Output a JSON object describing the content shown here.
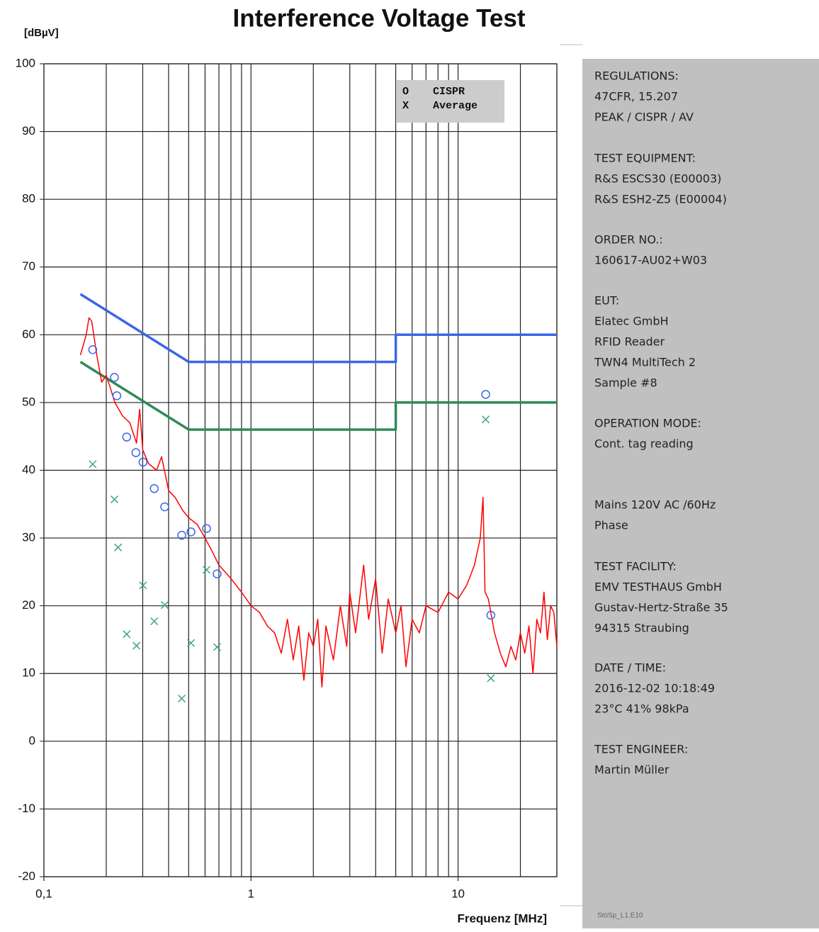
{
  "chart_data": {
    "type": "line",
    "title": "Interference Voltage Test",
    "y_label": "[dBµV]",
    "x_label": "Frequenz [MHz]",
    "log_x": true,
    "grid": true,
    "xlim": [
      0.1,
      30
    ],
    "ylim": [
      -20,
      100
    ],
    "xticks": [
      {
        "value": 0.1,
        "label": "0,1"
      },
      1,
      10
    ],
    "xminor": [
      0.2,
      0.3,
      0.4,
      0.5,
      0.6,
      0.7,
      0.8,
      0.9,
      2,
      3,
      4,
      5,
      6,
      7,
      8,
      9,
      20,
      30
    ],
    "yticks": [
      -20,
      -10,
      0,
      10,
      20,
      30,
      40,
      50,
      60,
      70,
      80,
      90,
      100
    ],
    "series": [
      {
        "type": "line",
        "color": "#3a66e8",
        "width": 3.5,
        "x": [
          0.15,
          0.5,
          5,
          5,
          30
        ],
        "values": [
          66,
          56,
          56,
          60,
          60
        ]
      },
      {
        "type": "line",
        "color": "#2e8b57",
        "width": 3.5,
        "x": [
          0.15,
          0.5,
          5,
          5,
          30
        ],
        "values": [
          56,
          46,
          46,
          50,
          50
        ]
      },
      {
        "type": "line",
        "color": "#ff0000",
        "width": 1.5,
        "x": [
          0.15,
          0.16,
          0.165,
          0.17,
          0.18,
          0.19,
          0.2,
          0.21,
          0.22,
          0.24,
          0.26,
          0.28,
          0.29,
          0.3,
          0.32,
          0.35,
          0.37,
          0.4,
          0.43,
          0.47,
          0.5,
          0.55,
          0.6,
          0.65,
          0.7,
          0.8,
          0.9,
          1.0,
          1.1,
          1.2,
          1.3,
          1.4,
          1.5,
          1.6,
          1.7,
          1.8,
          1.9,
          2.0,
          2.1,
          2.2,
          2.3,
          2.5,
          2.7,
          2.9,
          3.0,
          3.2,
          3.5,
          3.7,
          4.0,
          4.3,
          4.6,
          5.0,
          5.3,
          5.6,
          6.0,
          6.5,
          7,
          8,
          9,
          10,
          11,
          12,
          12.8,
          13.2,
          13.5,
          14,
          15,
          16,
          17,
          18,
          19,
          20,
          21,
          22,
          23,
          24,
          25,
          26,
          27,
          28,
          29,
          30
        ],
        "values": [
          57,
          60,
          62.5,
          62,
          57,
          53,
          54,
          52,
          50,
          48,
          47,
          44,
          49,
          43,
          41,
          40,
          42,
          37,
          36,
          34,
          33,
          32,
          30,
          28,
          26,
          24,
          22,
          20,
          19,
          17,
          16,
          13,
          18,
          12,
          17,
          9,
          16,
          14,
          18,
          8,
          17,
          12,
          20,
          14,
          22,
          16,
          26,
          18,
          24,
          13,
          21,
          16,
          20,
          11,
          18,
          16,
          20,
          19,
          22,
          21,
          23,
          26,
          30,
          36,
          22,
          21,
          16,
          13,
          11,
          14,
          12,
          16,
          13,
          17,
          10,
          18,
          16,
          22,
          15,
          20,
          19,
          14
        ]
      },
      {
        "type": "scatter",
        "name": "CISPR",
        "marker_label": "O",
        "marker": "circle",
        "color": "#3a66e8",
        "x": [
          0.172,
          0.219,
          0.225,
          0.251,
          0.278,
          0.301,
          0.341,
          0.383,
          0.463,
          0.513,
          0.61,
          0.686,
          13.6,
          14.4
        ],
        "values": [
          57.8,
          53.7,
          51.0,
          44.9,
          42.6,
          41.2,
          37.3,
          34.6,
          30.4,
          30.9,
          31.4,
          24.7,
          51.2,
          18.6
        ]
      },
      {
        "type": "scatter",
        "name": "Average",
        "marker_label": "X",
        "marker": "cross",
        "color": "#3aa876",
        "x": [
          0.172,
          0.219,
          0.228,
          0.251,
          0.28,
          0.301,
          0.341,
          0.383,
          0.463,
          0.513,
          0.61,
          0.686,
          13.6,
          14.4
        ],
        "values": [
          40.9,
          35.7,
          28.6,
          15.8,
          14.1,
          23.0,
          17.7,
          20.1,
          6.3,
          14.5,
          25.3,
          13.9,
          47.5,
          9.3
        ]
      }
    ]
  },
  "side_panel": {
    "blocks": [
      [
        "REGULATIONS:",
        "47CFR, 15.207",
        "PEAK / CISPR / AV"
      ],
      [
        "TEST EQUIPMENT:",
        "R&S ESCS30 (E00003)",
        "R&S ESH2-Z5 (E00004)"
      ],
      [
        "ORDER NO.:",
        "160617-AU02+W03"
      ],
      [
        "EUT:",
        "Elatec GmbH",
        "RFID Reader",
        "TWN4 MultiTech 2",
        "Sample #8"
      ],
      [
        "OPERATION MODE:",
        "Cont. tag reading"
      ],
      [
        "Mains 120V AC /60Hz",
        "Phase"
      ],
      [
        "TEST FACILITY:",
        "EMV TESTHAUS GmbH",
        "Gustav-Hertz-Straße 35",
        "94315 Straubing"
      ],
      [
        "DATE / TIME:",
        "2016-12-02 10:18:49",
        "23°C 41% 98kPa"
      ],
      [
        "TEST ENGINEER:",
        "Martin Müller"
      ]
    ],
    "footer": "StöSp_L1.E10"
  }
}
